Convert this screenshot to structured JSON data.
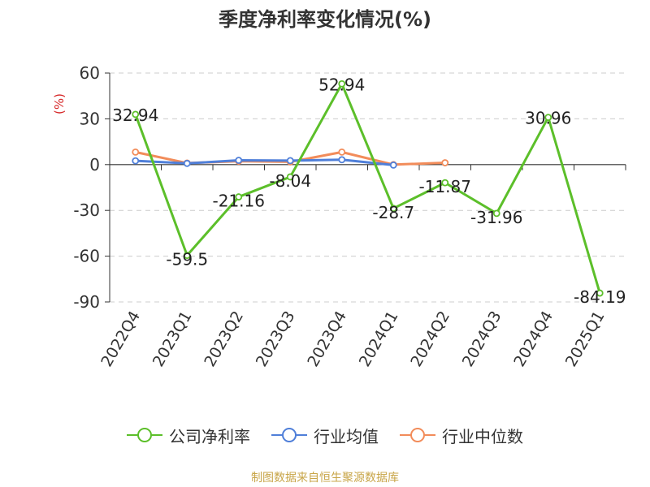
{
  "chart_data": {
    "type": "line",
    "title": "季度净利率变化情况(%)",
    "ylabel": "(%)",
    "categories": [
      "2022Q4",
      "2023Q1",
      "2023Q2",
      "2023Q3",
      "2023Q4",
      "2024Q1",
      "2024Q2",
      "2024Q3",
      "2024Q4",
      "2025Q1"
    ],
    "yticks": [
      60,
      30,
      0,
      -30,
      -60,
      -90
    ],
    "ylim": [
      -90,
      60
    ],
    "grid": true,
    "legend_position": "bottom",
    "series": [
      {
        "name": "公司净利率",
        "color": "#5cbf2a",
        "values": [
          32.94,
          -59.5,
          -21.16,
          -8.04,
          52.94,
          -28.7,
          -11.87,
          -31.96,
          30.96,
          -84.19
        ],
        "labels": [
          "32.94",
          "-59.5",
          "-21.16",
          "-8.04",
          "52.94",
          "-28.7",
          "-11.87",
          "-31.96",
          "30.96",
          "-84.19"
        ]
      },
      {
        "name": "行业均值",
        "color": "#4f7fd9",
        "values": [
          2.5,
          0.8,
          2.8,
          2.6,
          3.2,
          -0.3,
          null,
          null,
          null,
          null
        ]
      },
      {
        "name": "行业中位数",
        "color": "#f28c5a",
        "values": [
          8.2,
          1.0,
          2.2,
          1.8,
          8.2,
          0.0,
          1.2,
          null,
          null,
          null
        ]
      }
    ]
  },
  "source": "制图数据来自恒生聚源数据库"
}
